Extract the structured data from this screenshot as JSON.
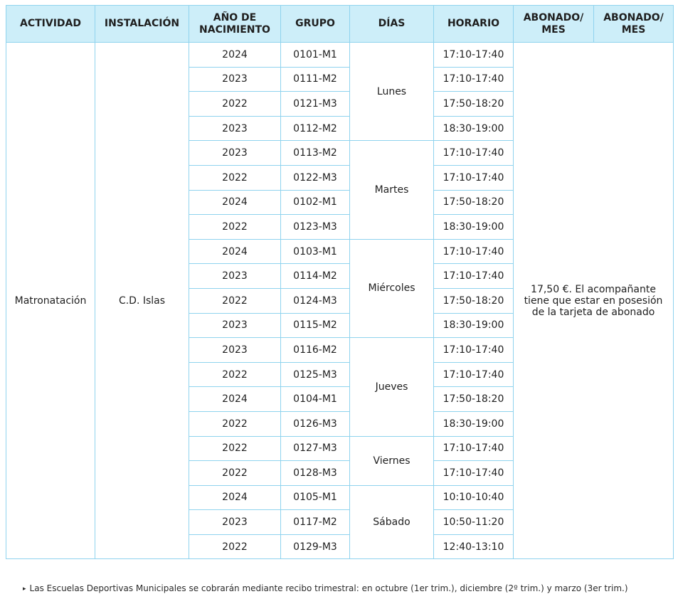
{
  "headers": {
    "actividad": "ACTIVIDAD",
    "instalacion": "INSTALACIÓN",
    "anio_line1": "AÑO DE",
    "anio_line2": "NACIMIENTO",
    "grupo": "GRUPO",
    "dias": "DÍAS",
    "horario": "HORARIO",
    "abonado1_line1": "ABONADO/",
    "abonado1_line2": "MES",
    "abonado2_line1": "ABONADO/",
    "abonado2_line2": "MES"
  },
  "actividad": "Matronatación",
  "instalacion": "C.D. Islas",
  "precio_nota_1": "17,50 €. El acompañante",
  "precio_nota_2": "tiene que estar en posesión",
  "precio_nota_3": "de la tarjeta de abonado",
  "days": [
    {
      "dia": "Lunes",
      "rows": [
        {
          "anio": "2024",
          "grupo": "0101-M1",
          "horario": "17:10-17:40"
        },
        {
          "anio": "2023",
          "grupo": "0111-M2",
          "horario": "17:10-17:40"
        },
        {
          "anio": "2022",
          "grupo": "0121-M3",
          "horario": "17:50-18:20"
        },
        {
          "anio": "2023",
          "grupo": "0112-M2",
          "horario": "18:30-19:00"
        }
      ]
    },
    {
      "dia": "Martes",
      "rows": [
        {
          "anio": "2023",
          "grupo": "0113-M2",
          "horario": "17:10-17:40"
        },
        {
          "anio": "2022",
          "grupo": "0122-M3",
          "horario": "17:10-17:40"
        },
        {
          "anio": "2024",
          "grupo": "0102-M1",
          "horario": "17:50-18:20"
        },
        {
          "anio": "2022",
          "grupo": "0123-M3",
          "horario": "18:30-19:00"
        }
      ]
    },
    {
      "dia": "Miércoles",
      "rows": [
        {
          "anio": "2024",
          "grupo": "0103-M1",
          "horario": "17:10-17:40"
        },
        {
          "anio": "2023",
          "grupo": "0114-M2",
          "horario": "17:10-17:40"
        },
        {
          "anio": "2022",
          "grupo": "0124-M3",
          "horario": "17:50-18:20"
        },
        {
          "anio": "2023",
          "grupo": "0115-M2",
          "horario": "18:30-19:00"
        }
      ]
    },
    {
      "dia": "Jueves",
      "rows": [
        {
          "anio": "2023",
          "grupo": "0116-M2",
          "horario": "17:10-17:40"
        },
        {
          "anio": "2022",
          "grupo": "0125-M3",
          "horario": "17:10-17:40"
        },
        {
          "anio": "2024",
          "grupo": "0104-M1",
          "horario": "17:50-18:20"
        },
        {
          "anio": "2022",
          "grupo": "0126-M3",
          "horario": "18:30-19:00"
        }
      ]
    },
    {
      "dia": "Viernes",
      "rows": [
        {
          "anio": "2022",
          "grupo": "0127-M3",
          "horario": "17:10-17:40"
        },
        {
          "anio": "2022",
          "grupo": "0128-M3",
          "horario": "17:10-17:40"
        }
      ]
    },
    {
      "dia": "Sábado",
      "rows": [
        {
          "anio": "2024",
          "grupo": "0105-M1",
          "horario": "10:10-10:40"
        },
        {
          "anio": "2023",
          "grupo": "0117-M2",
          "horario": "10:50-11:20"
        },
        {
          "anio": "2022",
          "grupo": "0129-M3",
          "horario": "12:40-13:10"
        }
      ]
    }
  ],
  "footnote": "Las Escuelas Deportivas Municipales se cobrarán mediante recibo trimestral: en octubre (1er trim.), diciembre (2º trim.) y marzo (3er trim.)",
  "colors": {
    "header_bg": "#cdeef9",
    "border": "#8fd3ee"
  },
  "icons": {
    "footnote_bullet": "triangle-bullet-icon"
  }
}
